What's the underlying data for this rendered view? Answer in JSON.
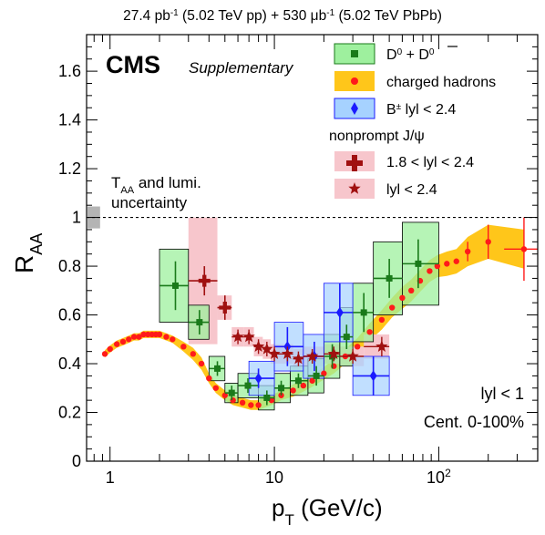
{
  "chart_data": {
    "type": "scatter",
    "header": {
      "lumi1": "27.4",
      "sup1": "-1",
      "mid": "(5.02 TeV pp) + 530",
      "mu": "μ",
      "sup2": "-1",
      "tail": "(5.02 TeV PbPb)"
    },
    "cms_label": "CMS",
    "cms_sub": "Supplementary",
    "annotation": {
      "taa_t": "T",
      "taa_sub": "AA",
      "taa_rest": "and lumi.",
      "taa_line2": "uncertainty"
    },
    "rapidity_label": "lyl < 1",
    "centrality_label": "Cent. 0-100%",
    "xlabel": {
      "p": "p",
      "sub": "T",
      "rest": "(GeV/c)"
    },
    "ylabel": {
      "r": "R",
      "sub": "AA"
    },
    "x_log": true,
    "xlim": [
      0.72,
      400
    ],
    "ylim": [
      0,
      1.75
    ],
    "x_ticks": [
      {
        "v": 1,
        "label": "1"
      },
      {
        "v": 10,
        "label": "10"
      },
      {
        "v": 100,
        "label": "10",
        "sup": "2"
      }
    ],
    "y_ticks": [
      0,
      0.2,
      0.4,
      0.6,
      0.8,
      1,
      1.2,
      1.4,
      1.6
    ],
    "y_tick_labels": [
      "0",
      "0.2",
      "0.4",
      "0.6",
      "0.8",
      "1",
      "1.2",
      "1.4",
      "1.6"
    ],
    "reference_line": 1.0,
    "global_box": {
      "x0": 0.73,
      "x1": 0.87,
      "y0": 0.955,
      "y1": 1.045
    },
    "legend": {
      "d0": "D",
      "d0_sup": "0",
      "d0_plus": "+ D",
      "d0bar_sup": "0",
      "hadrons": "charged hadrons",
      "bpm": "B",
      "bpm_sup": "±",
      "bpm_rest": "lyl < 2.4",
      "jpsi_header": "nonprompt J/ψ",
      "jpsi_fwd": "1.8 < lyl < 2.4",
      "jpsi_mid": "lyl < 2.4"
    },
    "colors": {
      "d0": "#1a7a1a",
      "d0_box": "#9ef09e",
      "hadrons": "#ff1a1a",
      "hadrons_band": "#ffc61a",
      "bpm": "#1a1aff",
      "bpm_box": "#a6d2ff",
      "jpsi": "#a01010",
      "jpsi_box": "#f7c6cc",
      "global": "#b4b4b4"
    },
    "series": [
      {
        "name": "charged hadrons",
        "points": [
          {
            "x": 0.93,
            "y": 0.44,
            "b": 0.015
          },
          {
            "x": 1.0,
            "y": 0.46,
            "b": 0.015
          },
          {
            "x": 1.1,
            "y": 0.48,
            "b": 0.015
          },
          {
            "x": 1.2,
            "y": 0.49,
            "b": 0.015
          },
          {
            "x": 1.3,
            "y": 0.5,
            "b": 0.015
          },
          {
            "x": 1.4,
            "y": 0.51,
            "b": 0.015
          },
          {
            "x": 1.5,
            "y": 0.51,
            "b": 0.015
          },
          {
            "x": 1.6,
            "y": 0.52,
            "b": 0.015
          },
          {
            "x": 1.7,
            "y": 0.52,
            "b": 0.015
          },
          {
            "x": 1.8,
            "y": 0.52,
            "b": 0.015
          },
          {
            "x": 1.9,
            "y": 0.52,
            "b": 0.015
          },
          {
            "x": 2.0,
            "y": 0.52,
            "b": 0.015
          },
          {
            "x": 2.2,
            "y": 0.51,
            "b": 0.015
          },
          {
            "x": 2.4,
            "y": 0.5,
            "b": 0.015
          },
          {
            "x": 2.8,
            "y": 0.47,
            "b": 0.02
          },
          {
            "x": 3.2,
            "y": 0.44,
            "b": 0.025
          },
          {
            "x": 3.6,
            "y": 0.4,
            "b": 0.025
          },
          {
            "x": 4.0,
            "y": 0.34,
            "b": 0.02
          },
          {
            "x": 4.4,
            "y": 0.3,
            "b": 0.02
          },
          {
            "x": 5.0,
            "y": 0.27,
            "b": 0.02
          },
          {
            "x": 5.6,
            "y": 0.25,
            "b": 0.02
          },
          {
            "x": 6.4,
            "y": 0.24,
            "b": 0.02
          },
          {
            "x": 7.2,
            "y": 0.23,
            "b": 0.02
          },
          {
            "x": 8.0,
            "y": 0.23,
            "b": 0.02
          },
          {
            "x": 9.6,
            "y": 0.25,
            "b": 0.02
          },
          {
            "x": 11,
            "y": 0.27,
            "b": 0.02
          },
          {
            "x": 13,
            "y": 0.29,
            "b": 0.025
          },
          {
            "x": 15,
            "y": 0.31,
            "b": 0.025
          },
          {
            "x": 17,
            "y": 0.33,
            "b": 0.025
          },
          {
            "x": 20,
            "y": 0.36,
            "b": 0.025
          },
          {
            "x": 23,
            "y": 0.39,
            "b": 0.03
          },
          {
            "x": 27,
            "y": 0.43,
            "b": 0.03
          },
          {
            "x": 32,
            "y": 0.47,
            "b": 0.035
          },
          {
            "x": 38,
            "y": 0.53,
            "b": 0.035
          },
          {
            "x": 45,
            "y": 0.58,
            "b": 0.04
          },
          {
            "x": 52,
            "y": 0.63,
            "b": 0.04
          },
          {
            "x": 60,
            "y": 0.67,
            "b": 0.045
          },
          {
            "x": 68,
            "y": 0.7,
            "b": 0.045
          },
          {
            "x": 77,
            "y": 0.74,
            "b": 0.045
          },
          {
            "x": 88,
            "y": 0.78,
            "b": 0.045
          },
          {
            "x": 98,
            "y": 0.8,
            "b": 0.045
          },
          {
            "x": 112,
            "y": 0.81,
            "b": 0.05
          },
          {
            "x": 128,
            "y": 0.82,
            "b": 0.05
          },
          {
            "x": 150,
            "y": 0.86,
            "b": 0.06,
            "e": 0.04
          },
          {
            "x": 200,
            "y": 0.9,
            "b": 0.07,
            "e": 0.07
          },
          {
            "x": 330,
            "y": 0.87,
            "b": 0.08,
            "e": 0.13,
            "xl": 250,
            "xh": 400
          }
        ]
      },
      {
        "name": "D0 + D0bar",
        "points": [
          {
            "x": 2.5,
            "y": 0.72,
            "e": 0.1,
            "b": 0.15,
            "xl": 2.0,
            "xh": 3.0
          },
          {
            "x": 3.5,
            "y": 0.57,
            "e": 0.05,
            "b": 0.07,
            "xl": 3.0,
            "xh": 4.0
          },
          {
            "x": 4.5,
            "y": 0.38,
            "e": 0.03,
            "b": 0.05,
            "xl": 4.0,
            "xh": 5.0
          },
          {
            "x": 5.5,
            "y": 0.28,
            "e": 0.03,
            "b": 0.04,
            "xl": 5.0,
            "xh": 6.0
          },
          {
            "x": 6.9,
            "y": 0.31,
            "e": 0.03,
            "b": 0.05,
            "xl": 6.0,
            "xh": 8.0
          },
          {
            "x": 9.0,
            "y": 0.26,
            "e": 0.03,
            "b": 0.05,
            "xl": 8.0,
            "xh": 10.0
          },
          {
            "x": 11.0,
            "y": 0.3,
            "e": 0.03,
            "b": 0.06,
            "xl": 10.0,
            "xh": 12.5
          },
          {
            "x": 14.0,
            "y": 0.33,
            "e": 0.03,
            "b": 0.06,
            "xl": 12.5,
            "xh": 16.0
          },
          {
            "x": 18.0,
            "y": 0.35,
            "e": 0.04,
            "b": 0.07,
            "xl": 16.0,
            "xh": 20.0
          },
          {
            "x": 22.5,
            "y": 0.43,
            "e": 0.05,
            "b": 0.09,
            "xl": 20.0,
            "xh": 25.0
          },
          {
            "x": 27.5,
            "y": 0.51,
            "e": 0.05,
            "b": 0.12,
            "xl": 25.0,
            "xh": 30.0
          },
          {
            "x": 35.0,
            "y": 0.61,
            "e": 0.08,
            "b": 0.12,
            "xl": 30.0,
            "xh": 40.0
          },
          {
            "x": 50.0,
            "y": 0.75,
            "e": 0.08,
            "b": 0.15,
            "xl": 40.0,
            "xh": 60.0
          },
          {
            "x": 75.0,
            "y": 0.81,
            "e": 0.1,
            "b": 0.17,
            "xl": 60.0,
            "xh": 100.0
          }
        ]
      },
      {
        "name": "B+- lyl < 2.4",
        "points": [
          {
            "x": 8.0,
            "y": 0.34,
            "e": 0.04,
            "b": 0.07,
            "xl": 7.0,
            "xh": 10.0
          },
          {
            "x": 12.0,
            "y": 0.47,
            "e": 0.08,
            "b": 0.1,
            "xl": 10.0,
            "xh": 15.0
          },
          {
            "x": 17.5,
            "y": 0.43,
            "e": 0.06,
            "b": 0.09,
            "xl": 15.0,
            "xh": 20.0
          },
          {
            "x": 25.0,
            "y": 0.61,
            "e": 0.12,
            "b": 0.12,
            "xl": 20.0,
            "xh": 30.0
          },
          {
            "x": 40.0,
            "y": 0.35,
            "e": 0.08,
            "b": 0.08,
            "xl": 30.0,
            "xh": 50.0
          }
        ]
      },
      {
        "name": "nonprompt J/psi 1.8 < lyl < 2.4",
        "points": [
          {
            "x": 3.75,
            "y": 0.74,
            "e": 0.06,
            "b": 0.26,
            "xl": 3.0,
            "xh": 4.5
          },
          {
            "x": 5.0,
            "y": 0.63,
            "e": 0.05,
            "b": 0.05,
            "xl": 4.5,
            "xh": 5.5
          }
        ]
      },
      {
        "name": "nonprompt J/psi lyl < 2.4",
        "points": [
          {
            "x": 6.0,
            "y": 0.51,
            "e": 0.03,
            "b": 0.04,
            "xl": 5.5,
            "xh": 6.5
          },
          {
            "x": 7.0,
            "y": 0.51,
            "e": 0.03,
            "b": 0.04,
            "xl": 6.5,
            "xh": 7.5
          },
          {
            "x": 8.0,
            "y": 0.47,
            "e": 0.03,
            "b": 0.04,
            "xl": 7.5,
            "xh": 8.5
          },
          {
            "x": 9.0,
            "y": 0.46,
            "e": 0.03,
            "b": 0.04,
            "xl": 8.5,
            "xh": 9.5
          },
          {
            "x": 10.0,
            "y": 0.44,
            "e": 0.03,
            "b": 0.04,
            "xl": 9.5,
            "xh": 11.0
          },
          {
            "x": 12.0,
            "y": 0.44,
            "e": 0.03,
            "b": 0.04,
            "xl": 11.0,
            "xh": 13.0
          },
          {
            "x": 14.0,
            "y": 0.42,
            "e": 0.03,
            "b": 0.04,
            "xl": 13.0,
            "xh": 15.0
          },
          {
            "x": 17.0,
            "y": 0.43,
            "e": 0.03,
            "b": 0.04,
            "xl": 15.0,
            "xh": 20.0
          },
          {
            "x": 23.0,
            "y": 0.44,
            "e": 0.03,
            "b": 0.04,
            "xl": 20.0,
            "xh": 25.0
          },
          {
            "x": 30.0,
            "y": 0.43,
            "e": 0.03,
            "b": 0.04,
            "xl": 25.0,
            "xh": 35.0
          },
          {
            "x": 45.0,
            "y": 0.47,
            "e": 0.04,
            "b": 0.05,
            "xl": 35.0,
            "xh": 50.0
          }
        ]
      }
    ]
  }
}
